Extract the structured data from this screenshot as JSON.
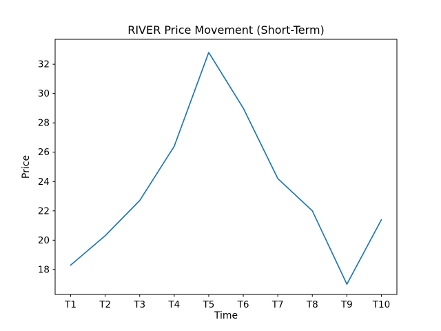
{
  "figure": {
    "background": "#ffffff"
  },
  "chart_data": {
    "type": "line",
    "title": "RIVER Price Movement (Short-Term)",
    "xlabel": "Time",
    "ylabel": "Price",
    "categories": [
      "T1",
      "T2",
      "T3",
      "T4",
      "T5",
      "T6",
      "T7",
      "T8",
      "T9",
      "T10"
    ],
    "values": [
      18.3,
      20.3,
      22.7,
      26.4,
      32.8,
      29.0,
      24.2,
      22.0,
      17.0,
      21.4
    ],
    "series_name": "RIVER price",
    "ylim": [
      16.3,
      33.7
    ],
    "yticks": [
      18,
      20,
      22,
      24,
      26,
      28,
      30,
      32
    ],
    "grid": false,
    "legend_position": "none",
    "line_color": "#1f77b4",
    "axis_color": "#000000"
  }
}
